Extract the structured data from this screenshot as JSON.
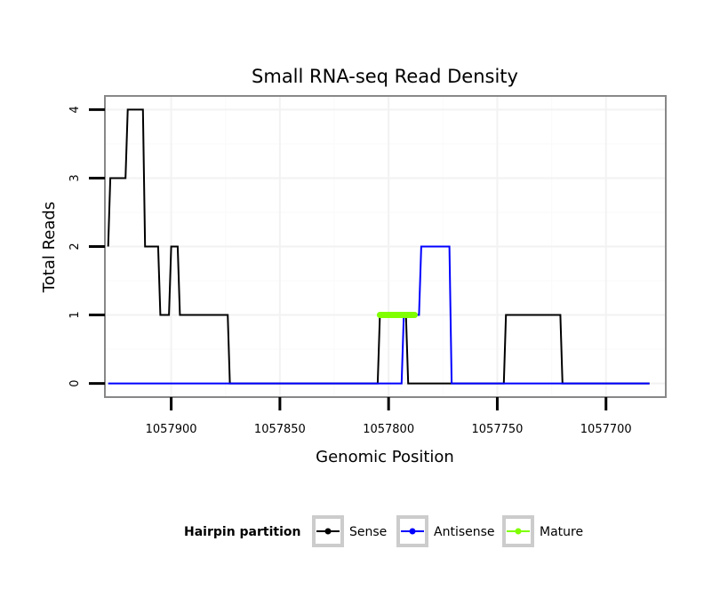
{
  "chart_data": {
    "type": "line",
    "title": "Small RNA-seq Read Density",
    "xlabel": "Genomic Position",
    "ylabel": "Total Reads",
    "xlim": [
      1057930.5,
      1057672.5
    ],
    "x_reversed": true,
    "ylim": [
      -0.2,
      4.2
    ],
    "grid": true,
    "x_ticks": [
      1057900,
      1057850,
      1057800,
      1057750,
      1057700
    ],
    "x_tick_labels": [
      "1057900",
      "1057850",
      "1057800",
      "1057750",
      "1057700"
    ],
    "y_ticks": [
      0,
      1,
      2,
      3,
      4
    ],
    "y_tick_labels": [
      "0",
      "1",
      "2",
      "3",
      "4"
    ],
    "legend": {
      "title": "Hairpin partition",
      "position": "bottom",
      "entries": [
        {
          "name": "Sense",
          "color": "#000000"
        },
        {
          "name": "Antisense",
          "color": "#0000ff"
        },
        {
          "name": "Mature",
          "color": "#7fff00"
        }
      ]
    },
    "series": [
      {
        "name": "Sense",
        "color": "#000000",
        "x": [
          1057929,
          1057928,
          1057921,
          1057920,
          1057913,
          1057912,
          1057906,
          1057905,
          1057901,
          1057900,
          1057897,
          1057896,
          1057895,
          1057894,
          1057892,
          1057891,
          1057874,
          1057873,
          1057805,
          1057804,
          1057792,
          1057791,
          1057747,
          1057746,
          1057721,
          1057720,
          1057680
        ],
        "values": [
          2,
          3,
          3,
          4,
          4,
          2,
          2,
          1,
          1,
          2,
          2,
          1,
          1,
          1,
          1,
          1,
          1,
          0,
          0,
          1,
          1,
          0,
          0,
          1,
          1,
          0,
          0
        ]
      },
      {
        "name": "Antisense",
        "color": "#0000ff",
        "x": [
          1057929,
          1057794,
          1057793,
          1057786,
          1057785,
          1057772,
          1057771,
          1057680
        ],
        "values": [
          0,
          0,
          1,
          1,
          2,
          2,
          0,
          0
        ]
      },
      {
        "name": "Mature",
        "color": "#7fff00",
        "x": [
          1057804,
          1057788
        ],
        "values": [
          1,
          1
        ]
      }
    ]
  }
}
